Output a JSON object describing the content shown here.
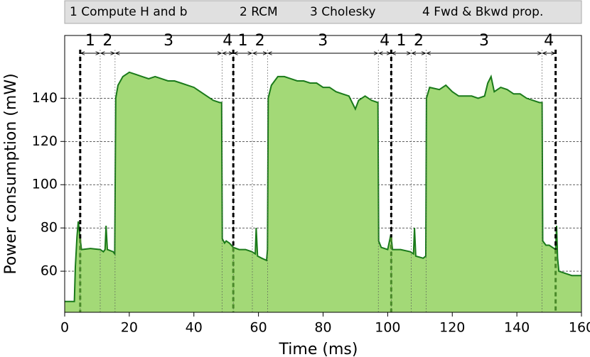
{
  "chart_data": {
    "type": "area",
    "xlabel": "Time (ms)",
    "ylabel": "Power consumption (mW)",
    "legend_items": [
      "1 Compute H and b",
      "2 RCM",
      "3 Cholesky",
      "4 Fwd & Bkwd prop."
    ],
    "color": "#1a7a1a",
    "fill_color": "#a3d977",
    "xlim": [
      0,
      160
    ],
    "xticks": [
      0,
      20,
      40,
      60,
      80,
      100,
      120,
      140,
      160
    ],
    "ylim": [
      41,
      169
    ],
    "yticks": [
      60,
      80,
      100,
      120,
      140
    ],
    "grid": true,
    "x": [
      0,
      3,
      3.3,
      3.8,
      4.2,
      4.8,
      5.2,
      8,
      11,
      12,
      12.5,
      12.8,
      13.2,
      15,
      15.5,
      15.8,
      16.5,
      18,
      20,
      22,
      24,
      26,
      28,
      30,
      32,
      34,
      36,
      38,
      40,
      42,
      44,
      46,
      48,
      48.6,
      48.8,
      49.5,
      50,
      51,
      52.2,
      54,
      56,
      58,
      59,
      59.3,
      59.7,
      61,
      62.5,
      62.8,
      63,
      64,
      66,
      68,
      70,
      72,
      74,
      76,
      78,
      80,
      82,
      84,
      86,
      88,
      89,
      90,
      91,
      93,
      95,
      97,
      97.2,
      98,
      100,
      101,
      101.5,
      104,
      107,
      108,
      108.3,
      108.7,
      111,
      111.8,
      112,
      113,
      116,
      118,
      120,
      122,
      124,
      126,
      128,
      130,
      131,
      132,
      133,
      135,
      137,
      139,
      141,
      143,
      145,
      147,
      147.8,
      148,
      149,
      150,
      152,
      152.3,
      152.6,
      153,
      155,
      157,
      160
    ],
    "values": [
      46,
      46,
      62,
      76,
      83,
      75,
      70,
      70.5,
      70,
      69,
      70,
      81,
      70,
      69,
      68,
      140,
      146,
      150,
      152,
      151,
      150,
      149,
      150,
      149,
      148,
      148,
      147,
      146,
      145,
      143,
      141,
      139,
      138,
      138,
      75,
      73,
      74,
      73,
      71,
      70,
      70,
      69,
      68,
      80,
      67,
      66,
      65,
      70,
      140,
      146,
      150,
      150,
      149,
      148,
      148,
      147,
      147,
      145,
      145,
      143,
      142,
      141,
      138,
      135,
      139,
      141,
      139,
      138,
      74,
      71,
      70,
      77,
      70,
      70,
      69,
      68,
      80,
      67,
      66,
      67,
      140,
      145,
      144,
      146,
      143,
      141,
      141,
      141,
      140,
      141,
      147,
      150,
      143,
      145,
      144,
      142,
      142,
      140,
      139,
      138,
      138,
      74,
      72,
      72,
      70,
      81,
      66,
      60,
      59,
      58,
      58
    ],
    "annotations": [
      {
        "label": "1",
        "x0": 4.8,
        "x1": 11
      },
      {
        "label": "2",
        "x0": 11,
        "x1": 15.6
      },
      {
        "label": "3",
        "x0": 15.6,
        "x1": 48.7
      },
      {
        "label": "4",
        "x0": 48.7,
        "x1": 52.2
      },
      {
        "label": "1",
        "x0": 52.2,
        "x1": 58.1
      },
      {
        "label": "2",
        "x0": 58.1,
        "x1": 62.8
      },
      {
        "label": "3",
        "x0": 62.8,
        "x1": 97.1
      },
      {
        "label": "4",
        "x0": 97.1,
        "x1": 101.1
      },
      {
        "label": "1",
        "x0": 101.1,
        "x1": 107.3
      },
      {
        "label": "2",
        "x0": 107.3,
        "x1": 111.9
      },
      {
        "label": "3",
        "x0": 111.9,
        "x1": 147.8
      },
      {
        "label": "4",
        "x0": 147.8,
        "x1": 152
      }
    ],
    "run_bounds": [
      4.8,
      52.2,
      101.1,
      152
    ]
  }
}
